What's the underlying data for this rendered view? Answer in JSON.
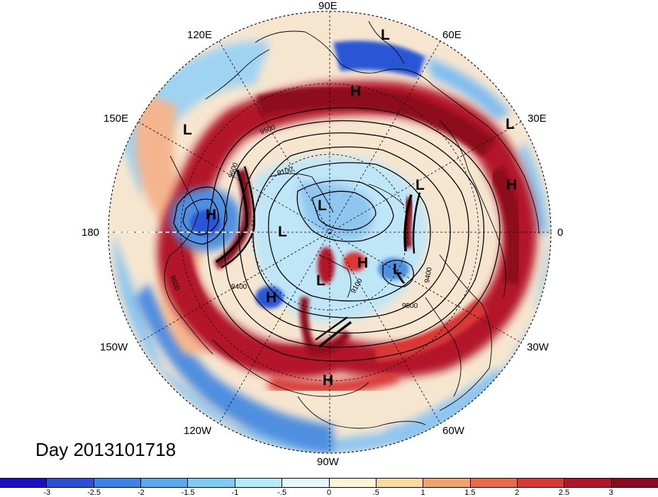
{
  "title": "Day 2013101718",
  "lon_labels": {
    "e90": "90E",
    "e60": "60E",
    "e120": "120E",
    "e30": "30E",
    "e150": "150E",
    "l180": "180",
    "l0": "0",
    "w150": "150W",
    "w30": "30W",
    "w120": "120W",
    "w60": "60W",
    "w90": "90W"
  },
  "pressure_centers": {
    "l_top": "L",
    "h_top": "H",
    "l_150e": "L",
    "l_30e": "L",
    "h_east": "H",
    "h_west": "H",
    "l_center1": "L",
    "l_center2": "L",
    "l_right": "L",
    "h_center_r": "H",
    "l_center3": "L",
    "h_center_l": "H",
    "h_bottom": "H"
  },
  "contour_labels": {
    "c1": "9500",
    "c2": "9600",
    "c3": "9100",
    "c4": "9600",
    "c5": "9400",
    "c6": "9400",
    "c7": "9100",
    "c8": "9500",
    "c9": "9400"
  },
  "colorbar": {
    "colors": [
      "#1a0fc2",
      "#2a50d8",
      "#3c82e8",
      "#5aa8f0",
      "#7ecbf5",
      "#b3ecfa",
      "#e6f8fc",
      "#fff5d6",
      "#fbd9a0",
      "#f4a26b",
      "#ea6a4c",
      "#d93835",
      "#b3162b",
      "#8e0a1e"
    ],
    "ticks": [
      "-3",
      "-2.5",
      "-2",
      "-1.5",
      "-1",
      "-.5",
      "0",
      ".5",
      "1",
      "1.5",
      "2",
      "2.5",
      "3"
    ]
  }
}
